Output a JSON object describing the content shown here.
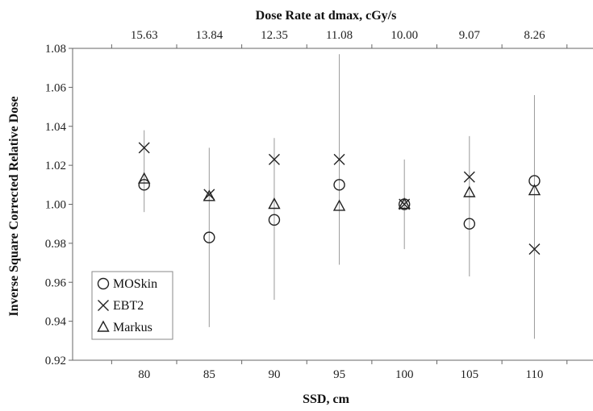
{
  "chart_data": {
    "type": "scatter",
    "xlabel": "SSD, cm",
    "ylabel": "Inverse Square Corrected Relative Dose",
    "top_xlabel": "Dose Rate at dmax, cGy/s",
    "x_ticks": [
      80,
      85,
      90,
      95,
      100,
      105,
      110
    ],
    "top_tick_labels": [
      "15.63",
      "13.84",
      "12.35",
      "11.08",
      "10.00",
      "9.07",
      "8.26"
    ],
    "xlim": [
      74.5,
      114.5
    ],
    "ylim": [
      0.92,
      1.08
    ],
    "y_ticks": [
      "0.92",
      "0.94",
      "0.96",
      "0.98",
      "1.00",
      "1.02",
      "1.04",
      "1.06",
      "1.08"
    ],
    "grid": false,
    "legend_position": "bottom-left",
    "error_bars": [
      {
        "x": 80,
        "low": 0.996,
        "high": 1.038
      },
      {
        "x": 85,
        "low": 0.937,
        "high": 1.029
      },
      {
        "x": 90,
        "low": 0.951,
        "high": 1.034
      },
      {
        "x": 95,
        "low": 0.969,
        "high": 1.077
      },
      {
        "x": 100,
        "low": 0.977,
        "high": 1.023
      },
      {
        "x": 105,
        "low": 0.963,
        "high": 1.035
      },
      {
        "x": 110,
        "low": 0.931,
        "high": 1.056
      }
    ],
    "series": [
      {
        "name": "MOSkin",
        "marker": "circle",
        "x": [
          80,
          85,
          90,
          95,
          100,
          105,
          110
        ],
        "y": [
          1.01,
          0.983,
          0.992,
          1.01,
          1.0,
          0.99,
          1.012
        ]
      },
      {
        "name": "EBT2",
        "marker": "x",
        "x": [
          80,
          85,
          90,
          95,
          100,
          105,
          110
        ],
        "y": [
          1.029,
          1.005,
          1.023,
          1.023,
          1.0,
          1.014,
          0.977
        ]
      },
      {
        "name": "Markus",
        "marker": "triangle",
        "x": [
          80,
          85,
          90,
          95,
          100,
          105,
          110
        ],
        "y": [
          1.013,
          1.004,
          1.0,
          0.999,
          1.0,
          1.006,
          1.007
        ]
      }
    ]
  }
}
